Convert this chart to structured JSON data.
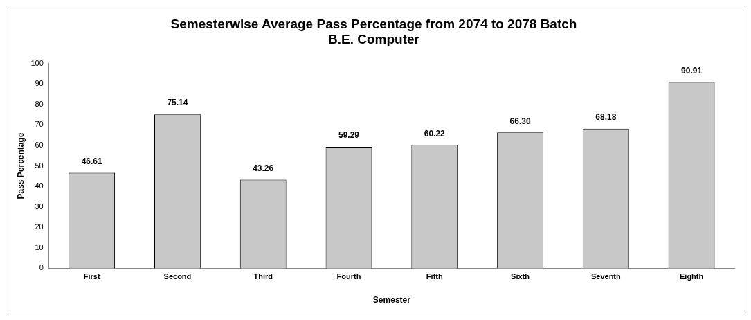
{
  "chart_data": {
    "type": "bar",
    "title": "Semesterwise Average Pass Percentage from 2074 to 2078 Batch",
    "subtitle": "B.E. Computer",
    "xlabel": "Semester",
    "ylabel": "Pass Percentage",
    "categories": [
      "First",
      "Second",
      "Third",
      "Fourth",
      "Fifth",
      "Sixth",
      "Seventh",
      "Eighth"
    ],
    "values": [
      46.61,
      75.14,
      43.26,
      59.29,
      60.22,
      66.3,
      68.18,
      90.91
    ],
    "value_labels": [
      "46.61",
      "75.14",
      "43.26",
      "59.29",
      "60.22",
      "66.30",
      "68.18",
      "90.91"
    ],
    "color": "#c8c8c8",
    "ylim": [
      0,
      100
    ],
    "yticks": [
      0,
      10,
      20,
      30,
      40,
      50,
      60,
      70,
      80,
      90,
      100
    ],
    "grid": false,
    "legend": false
  }
}
